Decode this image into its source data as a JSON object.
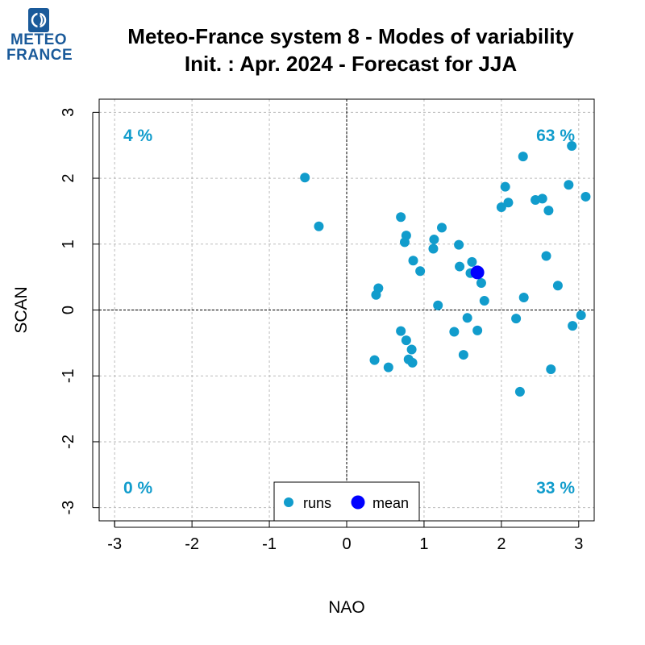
{
  "logo": {
    "line1": "METEO",
    "line2": "FRANCE"
  },
  "colors": {
    "runs": "#119ccc",
    "mean": "#0000ff",
    "quadrant_text": "#119ccc",
    "brand": "#1a5a9a"
  },
  "chart_data": {
    "type": "scatter",
    "title": "Meteo-France system 8 - Modes of variability",
    "subtitle": "Init. : Apr. 2024 - Forecast for JJA",
    "xlabel": "NAO",
    "ylabel": "SCAN",
    "xlim": [
      -3.2,
      3.2
    ],
    "ylim": [
      -3.2,
      3.2
    ],
    "xticks": [
      "-3",
      "-2",
      "-1",
      "0",
      "1",
      "2",
      "3"
    ],
    "yticks": [
      "-3",
      "-2",
      "-1",
      "0",
      "1",
      "2",
      "3"
    ],
    "grid": true,
    "zero_lines": true,
    "quadrants": [
      {
        "label": "4 %",
        "position": "top-left"
      },
      {
        "label": "63 %",
        "position": "top-right"
      },
      {
        "label": "0 %",
        "position": "bottom-left"
      },
      {
        "label": "33 %",
        "position": "bottom-right"
      }
    ],
    "legend": {
      "position": "bottom-center",
      "entries": [
        "runs",
        "mean"
      ]
    },
    "series": [
      {
        "name": "runs",
        "points": [
          [
            -0.54,
            2.01
          ],
          [
            -0.36,
            1.27
          ],
          [
            0.41,
            0.33
          ],
          [
            0.38,
            0.23
          ],
          [
            0.7,
            1.41
          ],
          [
            0.77,
            1.13
          ],
          [
            0.75,
            1.03
          ],
          [
            0.86,
            0.75
          ],
          [
            0.95,
            0.59
          ],
          [
            1.13,
            1.07
          ],
          [
            1.12,
            0.93
          ],
          [
            1.23,
            1.25
          ],
          [
            1.18,
            0.07
          ],
          [
            1.45,
            0.99
          ],
          [
            1.46,
            0.66
          ],
          [
            1.62,
            0.73
          ],
          [
            1.6,
            0.56
          ],
          [
            1.74,
            0.41
          ],
          [
            1.78,
            0.14
          ],
          [
            2.0,
            1.56
          ],
          [
            2.05,
            1.87
          ],
          [
            2.09,
            1.63
          ],
          [
            2.28,
            2.33
          ],
          [
            2.44,
            1.67
          ],
          [
            2.53,
            1.69
          ],
          [
            2.61,
            1.51
          ],
          [
            2.58,
            0.82
          ],
          [
            2.73,
            0.37
          ],
          [
            2.29,
            0.19
          ],
          [
            2.87,
            1.9
          ],
          [
            2.91,
            2.49
          ],
          [
            3.09,
            1.72
          ],
          [
            3.03,
            -0.08
          ],
          [
            2.92,
            -0.24
          ],
          [
            0.7,
            -0.32
          ],
          [
            0.77,
            -0.46
          ],
          [
            0.84,
            -0.6
          ],
          [
            0.36,
            -0.76
          ],
          [
            0.8,
            -0.75
          ],
          [
            0.85,
            -0.8
          ],
          [
            0.54,
            -0.87
          ],
          [
            1.39,
            -0.33
          ],
          [
            1.56,
            -0.12
          ],
          [
            1.69,
            -0.31
          ],
          [
            1.51,
            -0.68
          ],
          [
            2.19,
            -0.13
          ],
          [
            2.64,
            -0.9
          ],
          [
            2.24,
            -1.24
          ]
        ]
      },
      {
        "name": "mean",
        "points": [
          [
            1.69,
            0.57
          ]
        ]
      }
    ]
  }
}
